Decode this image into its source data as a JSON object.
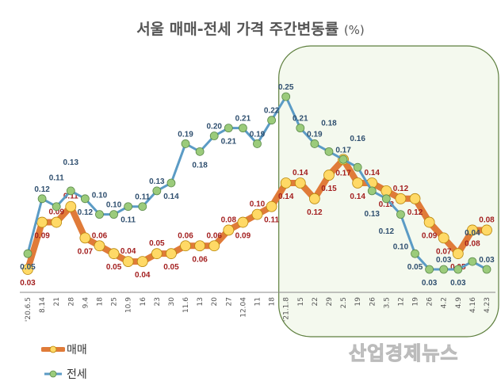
{
  "chart_data": {
    "type": "line",
    "title": "서울 매매-전세 가격 주간변동률",
    "title_unit": "(%)",
    "categories": [
      "'20.6.5",
      "8.14",
      "21",
      "28",
      "9.4",
      "18",
      "25",
      "10.9",
      "16",
      "23",
      "30",
      "11.6",
      "13",
      "20",
      "27",
      "12.04",
      "11",
      "18",
      "'21.1.8",
      "15",
      "22",
      "29",
      "2.5",
      "19",
      "26",
      "3.5",
      "12",
      "19",
      "26",
      "4.2",
      "4.9",
      "4.16",
      "4.23"
    ],
    "series": [
      {
        "name": "매매",
        "color": "#E07B39",
        "marker_color": "#FFD966",
        "values": [
          0.03,
          0.09,
          0.09,
          0.11,
          0.07,
          0.06,
          0.05,
          0.04,
          0.04,
          0.05,
          0.05,
          0.06,
          0.06,
          0.06,
          0.08,
          0.09,
          0.1,
          0.11,
          0.14,
          0.14,
          0.12,
          0.15,
          0.17,
          0.14,
          0.14,
          0.13,
          0.12,
          0.12,
          0.09,
          0.07,
          0.05,
          0.08,
          0.08
        ]
      },
      {
        "name": "전세",
        "color": "#5B9BC5",
        "marker_color": "#9BCB7B",
        "values": [
          0.05,
          0.12,
          0.11,
          0.13,
          0.12,
          0.1,
          0.1,
          0.11,
          0.11,
          0.13,
          0.14,
          0.19,
          0.18,
          0.2,
          0.21,
          0.21,
          0.19,
          0.22,
          0.25,
          0.21,
          0.19,
          0.18,
          0.17,
          0.16,
          0.13,
          0.12,
          0.1,
          0.05,
          0.03,
          0.03,
          0.03,
          0.04,
          0.03
        ]
      }
    ],
    "label_colors": {
      "매매": "#A31F1F",
      "전세": "#2F4F6F"
    },
    "highlight_region": {
      "from": "'21.1.8",
      "to": "4.23",
      "color": "#F4F9EE"
    },
    "legend_position": "bottom-left",
    "grid": false
  },
  "watermark": "산업경제뉴스"
}
